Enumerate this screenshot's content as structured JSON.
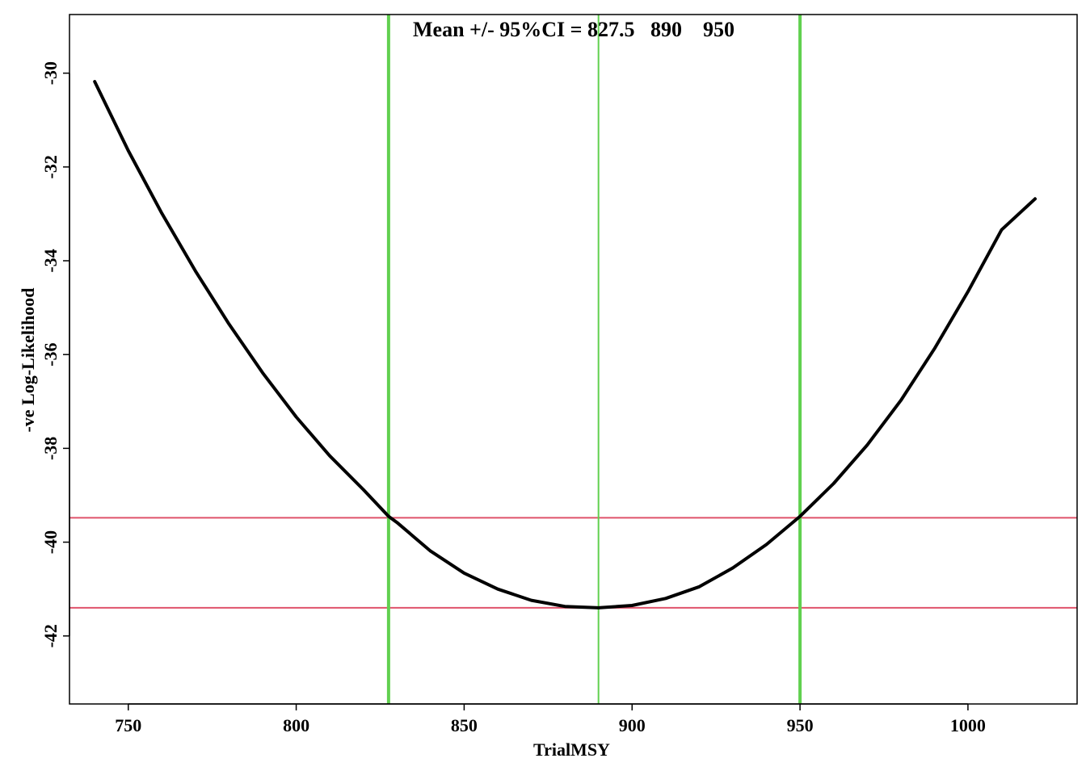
{
  "chart_data": {
    "type": "line",
    "title": "Mean +/- 95%CI = 827.5   890    950",
    "xlabel": "TrialMSY",
    "ylabel": "-ve Log-Likelihood",
    "xlim": [
      732.5,
      1032.5
    ],
    "ylim": [
      -43.45,
      -28.75
    ],
    "xticks": [
      750,
      800,
      850,
      900,
      950,
      1000
    ],
    "yticks": [
      -30,
      -32,
      -34,
      -36,
      -38,
      -40,
      -42
    ],
    "grid": false,
    "series": [
      {
        "color": "#000000",
        "x": [
          740,
          750,
          760,
          770,
          780,
          790,
          800,
          810,
          820,
          827.5,
          830,
          840,
          850,
          860,
          870,
          880,
          890,
          900,
          910,
          920,
          930,
          940,
          950,
          960,
          970,
          980,
          990,
          1000,
          1010,
          1020
        ],
        "y": [
          -30.18,
          -31.65,
          -32.99,
          -34.22,
          -35.35,
          -36.39,
          -37.33,
          -38.16,
          -38.88,
          -39.45,
          -39.58,
          -40.19,
          -40.66,
          -41.0,
          -41.24,
          -41.37,
          -41.4,
          -41.35,
          -41.2,
          -40.95,
          -40.55,
          -40.05,
          -39.45,
          -38.75,
          -37.93,
          -36.98,
          -35.88,
          -34.66,
          -33.34,
          -32.68
        ]
      }
    ],
    "vlines": [
      {
        "x": 827.5,
        "color": "#61D04F"
      },
      {
        "x": 890,
        "color": "#61D04F"
      },
      {
        "x": 950,
        "color": "#61D04F"
      }
    ],
    "hlines": [
      {
        "y": -39.48,
        "color": "#DF536B"
      },
      {
        "y": -41.4,
        "color": "#DF536B"
      }
    ]
  }
}
